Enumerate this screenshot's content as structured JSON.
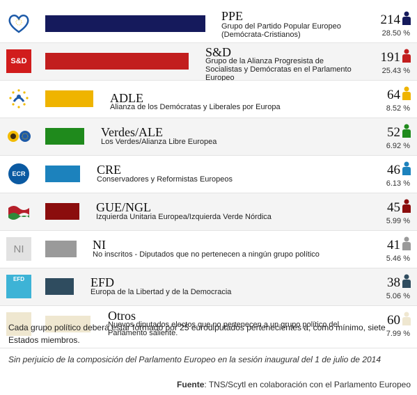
{
  "groups": [
    {
      "abbr": "PPE",
      "desc": "Grupo del Partido Popular Europeo (Demócrata-Cristianos)",
      "seats": "214",
      "pct": "28.50 %",
      "color": "#151a5c",
      "logo_color": "#1d5aa8",
      "logo_icon": "heart-logo-icon"
    },
    {
      "abbr": "S&D",
      "desc": "Grupo de la Alianza Progresista de Socialistas y Demócratas en el Parlamento Europeo",
      "seats": "191",
      "pct": "25.43 %",
      "color": "#c21e1e",
      "logo_color": "#d11c1c",
      "logo_icon": "sd-logo-icon",
      "logo_text": "S&D"
    },
    {
      "abbr": "ADLE",
      "desc": "Alianza de los Demócratas y Liberales por Europa",
      "seats": "64",
      "pct": "8.52 %",
      "color": "#efb400",
      "logo_color": "#f2bb00",
      "logo_icon": "stars-logo-icon"
    },
    {
      "abbr": "Verdes/ALE",
      "desc": "Los Verdes/Alianza Libre Europea",
      "seats": "52",
      "pct": "6.92 %",
      "color": "#1f8a1c",
      "logo_color": "#1f8a1c",
      "logo_icon": "sunflower-logo-icon"
    },
    {
      "abbr": "CRE",
      "desc": "Conservadores y Reformistas Europeos",
      "seats": "46",
      "pct": "6.13 %",
      "color": "#1c82bd",
      "logo_color": "#0b5aa2",
      "logo_icon": "ecr-logo-icon",
      "logo_text": "ECR"
    },
    {
      "abbr": "GUE/NGL",
      "desc": "Izquierda Unitaria Europea/Izquierda Verde Nórdica",
      "seats": "45",
      "pct": "5.99 %",
      "color": "#8b0d0d",
      "logo_color": "#b51f2a",
      "logo_icon": "flag-logo-icon"
    },
    {
      "abbr": "NI",
      "desc": "No inscritos - Diputados que no pertenecen a ningún grupo político",
      "seats": "41",
      "pct": "5.46 %",
      "color": "#9a9a9a",
      "logo_color": "#dcdcdc",
      "logo_icon": "ni-logo-icon",
      "logo_text": "NI"
    },
    {
      "abbr": "EFD",
      "desc": "Europa de la Libertad y de la Democracia",
      "seats": "38",
      "pct": "5.06 %",
      "color": "#2f4c5f",
      "logo_color": "#3db3d6",
      "logo_icon": "efd-logo-icon",
      "logo_text": "EFD"
    },
    {
      "abbr": "Otros",
      "desc": "Nuevos diputados electos que no pertenecen a un grupo político del Parlamento saliente.",
      "seats": "60",
      "pct": "7.99 %",
      "color": "#efe7d0",
      "logo_color": "#efe7d0",
      "logo_icon": "blank-logo-icon"
    }
  ],
  "footer": {
    "note": "Cada grupo político deberá estar formado por 25 eurodiputados pertenecientes a, como mínimo, siete Estados miembros.",
    "note_italic": "Sin perjuicio de la composición del Parlamento Europeo en la sesión inaugural del 1 de julio de 2014",
    "source_label": "Fuente",
    "source_text": ": TNS/Scytl en colaboración con el Parlamento Europeo"
  }
}
